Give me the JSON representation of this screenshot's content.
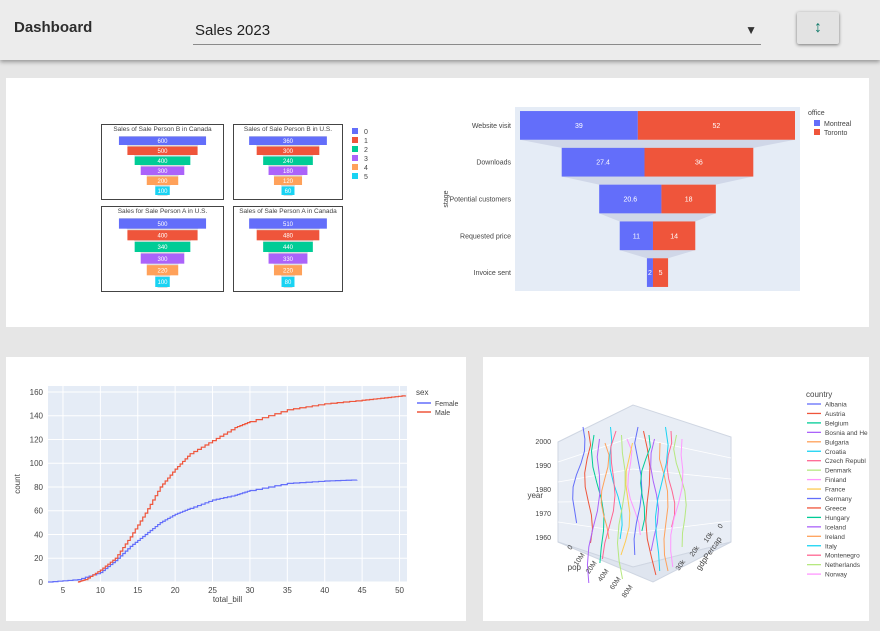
{
  "header": {
    "title": "Dashboard",
    "dropdown_value": "Sales 2023",
    "caret": "▼",
    "sort_icon": "↕"
  },
  "panel_small_funnels": {
    "funnels": [
      {
        "title": "Sales of Sale Person B in Canada",
        "values": [
          "600",
          "500",
          "400",
          "300",
          "200",
          "100"
        ]
      },
      {
        "title": "Sales of Sale Person B in U.S.",
        "values": [
          "360",
          "300",
          "240",
          "180",
          "120",
          "60"
        ]
      },
      {
        "title": "Sales for Sale Person A in U.S.",
        "values": [
          "500",
          "400",
          "340",
          "300",
          "220",
          "100"
        ]
      },
      {
        "title": "Sales of Sale Person A in Canada",
        "values": [
          "510",
          "480",
          "440",
          "330",
          "220",
          "80"
        ]
      }
    ],
    "legend": [
      "0",
      "1",
      "2",
      "3",
      "4",
      "5"
    ],
    "colors": [
      "#636efa",
      "#ef553b",
      "#00cc96",
      "#ab63fa",
      "#ffa15a",
      "#19d3f3"
    ]
  },
  "chart_data": [
    {
      "type": "bar",
      "subtype": "funnel",
      "categories": [
        "Website visit",
        "Downloads",
        "Potential customers",
        "Requested price",
        "Invoice sent"
      ],
      "ylabel": "stage",
      "legend_title": "office",
      "series": [
        {
          "name": "Montreal",
          "values": [
            39,
            27.4,
            20.6,
            11,
            2
          ],
          "color": "#636efa"
        },
        {
          "name": "Toronto",
          "values": [
            52,
            36,
            18,
            14,
            5
          ],
          "color": "#ef553b"
        }
      ],
      "legend_position": "top-right"
    },
    {
      "type": "line",
      "subtype": "ecdf-count",
      "xlabel": "total_bill",
      "ylabel": "count",
      "xlim": [
        3,
        51
      ],
      "ylim": [
        0,
        165
      ],
      "xticks": [
        5,
        10,
        15,
        20,
        25,
        30,
        35,
        40,
        45,
        50
      ],
      "yticks": [
        0,
        20,
        40,
        60,
        80,
        100,
        120,
        140,
        160
      ],
      "legend_title": "sex",
      "legend_position": "top-right",
      "grid": true,
      "series": [
        {
          "name": "Female",
          "color": "#636efa",
          "x": [
            3,
            7,
            10,
            12,
            14,
            16,
            18,
            20,
            22,
            25,
            28,
            30,
            35,
            40,
            44.3
          ],
          "y": [
            0,
            2,
            8,
            18,
            30,
            40,
            50,
            57,
            62,
            69,
            73,
            77,
            83,
            85,
            86
          ]
        },
        {
          "name": "Male",
          "color": "#ef553b",
          "x": [
            7,
            8,
            10,
            12,
            14,
            16,
            18,
            20,
            22,
            25,
            28,
            30,
            35,
            40,
            45,
            48,
            50.8
          ],
          "y": [
            0,
            2,
            10,
            20,
            38,
            58,
            80,
            95,
            108,
            119,
            130,
            135,
            145,
            150,
            153,
            155,
            157
          ]
        }
      ]
    },
    {
      "type": "scatter",
      "subtype": "line3d",
      "legend_title": "country",
      "legend_position": "right",
      "axes": {
        "z": {
          "label": "year",
          "ticks": [
            "1960",
            "1970",
            "1980",
            "1990",
            "2000"
          ]
        },
        "x": {
          "label": "pop",
          "ticks": [
            "0",
            "10M",
            "20M",
            "40M",
            "60M",
            "80M"
          ]
        },
        "y": {
          "label": "gdpPercap",
          "ticks": [
            "0",
            "10k",
            "20k",
            "30k"
          ]
        }
      },
      "series": [
        {
          "name": "Albania",
          "color": "#636efa"
        },
        {
          "name": "Austria",
          "color": "#ef553b"
        },
        {
          "name": "Belgium",
          "color": "#00cc96"
        },
        {
          "name": "Bosnia and He",
          "color": "#ab63fa"
        },
        {
          "name": "Bulgaria",
          "color": "#ffa15a"
        },
        {
          "name": "Croatia",
          "color": "#19d3f3"
        },
        {
          "name": "Czech Republ",
          "color": "#ff6692"
        },
        {
          "name": "Denmark",
          "color": "#b6e880"
        },
        {
          "name": "Finland",
          "color": "#ff97ff"
        },
        {
          "name": "France",
          "color": "#fecb52"
        },
        {
          "name": "Germany",
          "color": "#636efa"
        },
        {
          "name": "Greece",
          "color": "#ef553b"
        },
        {
          "name": "Hungary",
          "color": "#00cc96"
        },
        {
          "name": "Iceland",
          "color": "#ab63fa"
        },
        {
          "name": "Ireland",
          "color": "#ffa15a"
        },
        {
          "name": "Italy",
          "color": "#19d3f3"
        },
        {
          "name": "Montenegro",
          "color": "#ff6692"
        },
        {
          "name": "Netherlands",
          "color": "#b6e880"
        },
        {
          "name": "Norway",
          "color": "#ff97ff"
        }
      ]
    }
  ]
}
